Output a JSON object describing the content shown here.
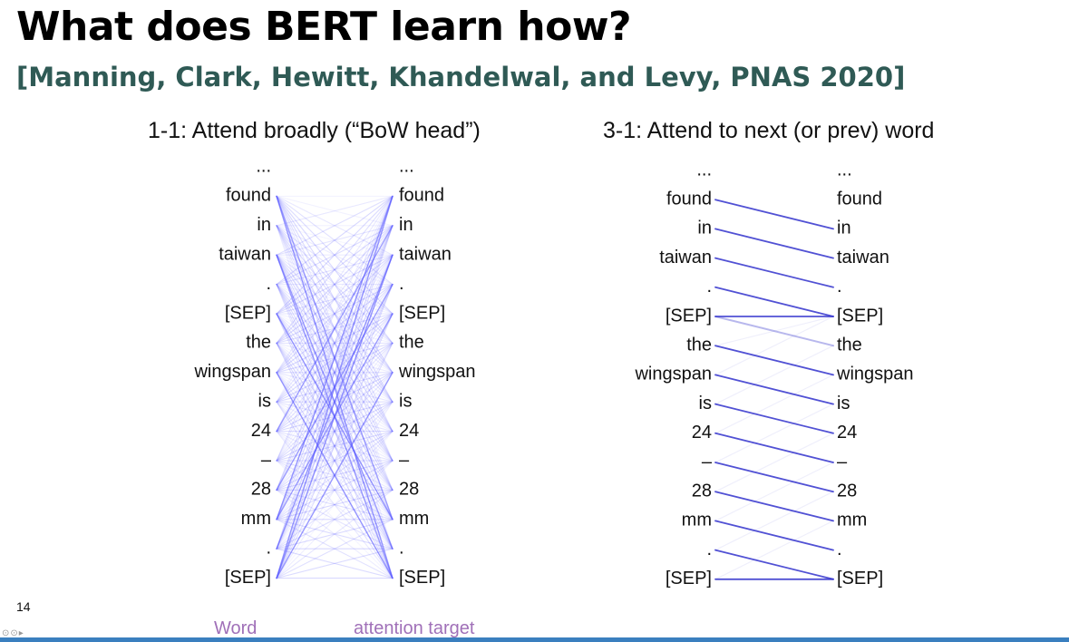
{
  "slide": {
    "title": "What does BERT learn how?",
    "citation": "[Manning, Clark, Hewitt, Khandelwal, and Levy, PNAS 2020]",
    "page_number": "14",
    "axis_labels": {
      "word": "Word",
      "target": "attention target"
    },
    "player_controls": "⊙⊙▸"
  },
  "panels": [
    {
      "title": "1-1: Attend broadly (“BoW head”)",
      "line_color": "#5a5aff",
      "tokens": [
        "...",
        "found",
        "in",
        "taiwan",
        ".",
        "[SEP]",
        "the",
        "wingspan",
        "is",
        "24",
        "–",
        "28",
        "mm",
        ".",
        "[SEP]"
      ]
    },
    {
      "title": "3-1: Attend to next (or prev) word",
      "line_color": "#3333cc",
      "tokens": [
        "...",
        "found",
        "in",
        "taiwan",
        ".",
        "[SEP]",
        "the",
        "wingspan",
        "is",
        "24",
        "–",
        "28",
        "mm",
        ".",
        "[SEP]"
      ],
      "strong_links": [
        [
          1,
          2
        ],
        [
          2,
          3
        ],
        [
          3,
          4
        ],
        [
          4,
          5
        ],
        [
          6,
          7
        ],
        [
          7,
          8
        ],
        [
          8,
          9
        ],
        [
          9,
          10
        ],
        [
          10,
          11
        ],
        [
          11,
          12
        ],
        [
          12,
          13
        ],
        [
          13,
          14
        ],
        [
          5,
          5
        ],
        [
          14,
          14
        ]
      ],
      "medium_links": [
        [
          5,
          6
        ]
      ],
      "faint_links": [
        [
          6,
          5
        ],
        [
          7,
          5
        ],
        [
          8,
          6
        ],
        [
          9,
          7
        ],
        [
          10,
          8
        ],
        [
          11,
          9
        ],
        [
          12,
          10
        ],
        [
          13,
          11
        ],
        [
          14,
          12
        ]
      ]
    }
  ],
  "colors": {
    "title": "#000000",
    "citation": "#2f5a55",
    "axis_label": "#a070b8",
    "bar": "#3a7fbf"
  }
}
